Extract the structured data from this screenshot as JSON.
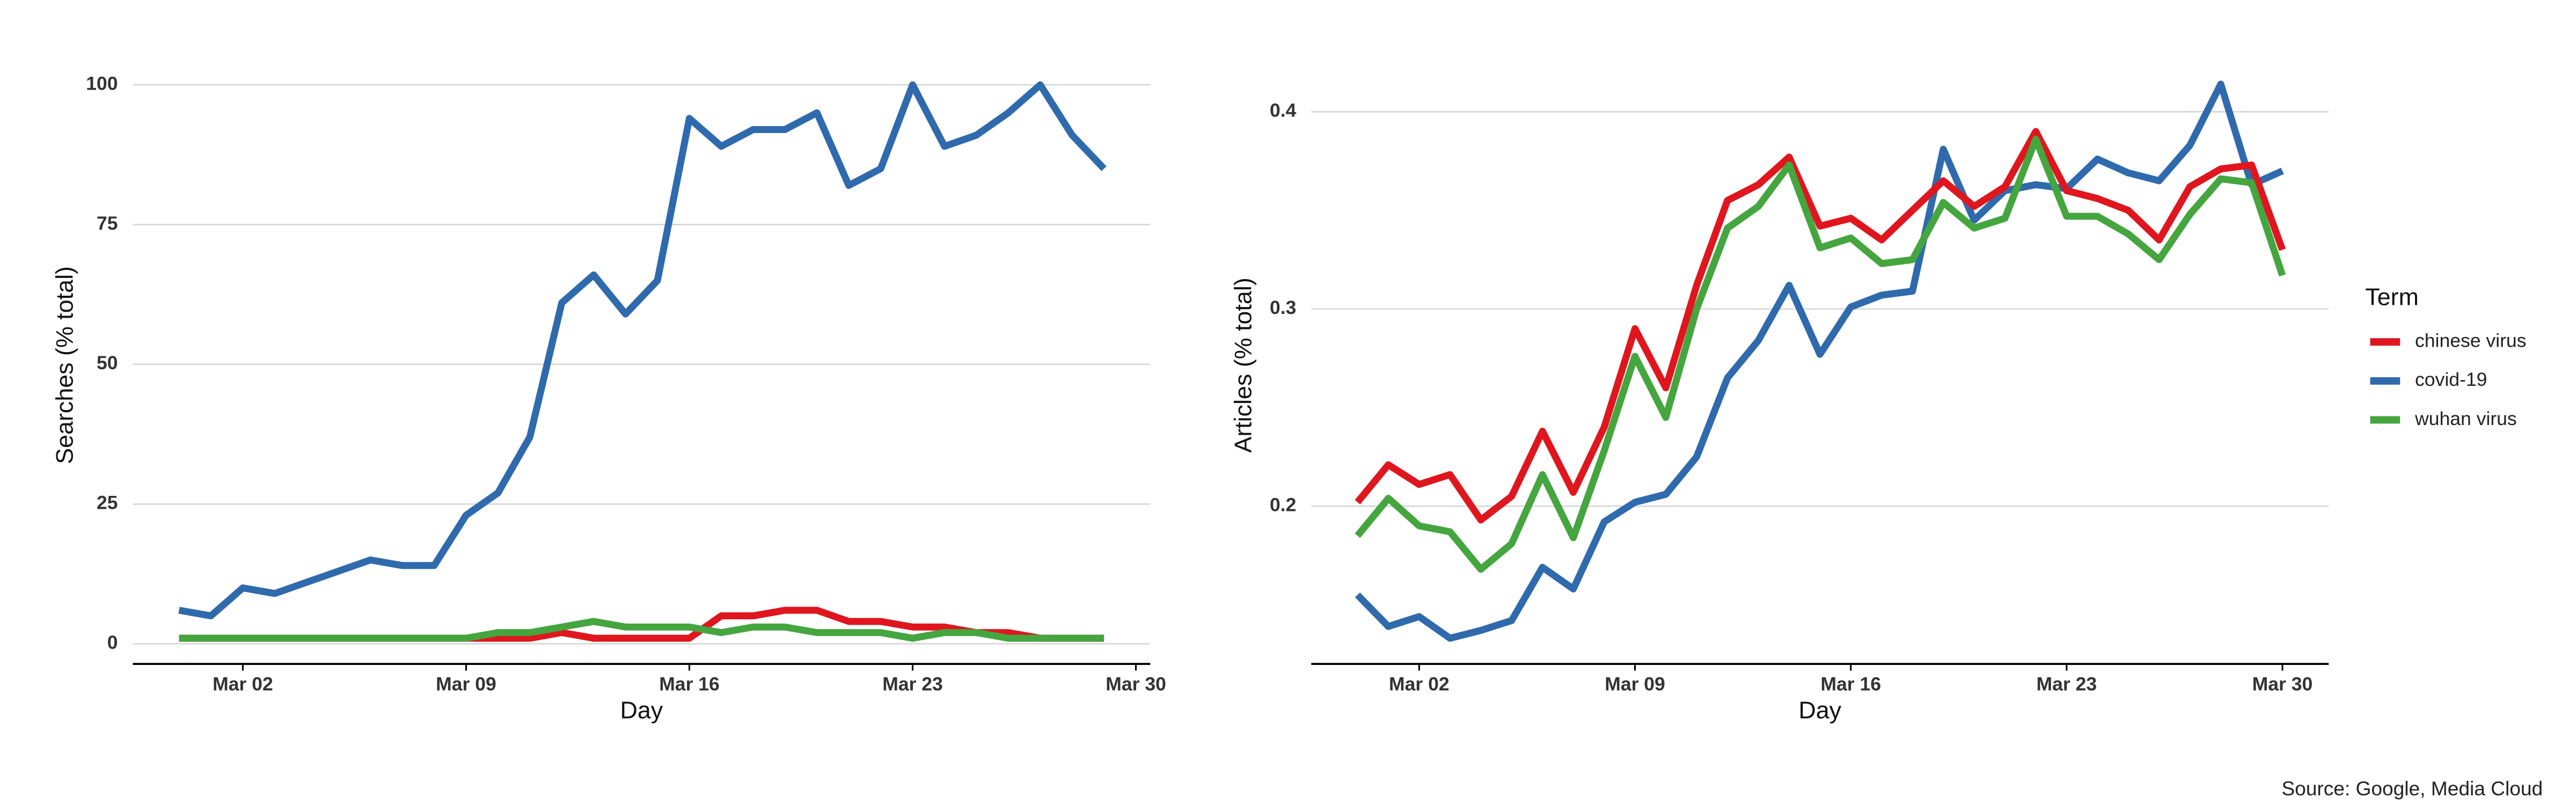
{
  "chart_data": [
    {
      "type": "line",
      "xlabel": "Day",
      "ylabel": "Searches (% total)",
      "x": [
        "Feb 29",
        "Mar 01",
        "Mar 02",
        "Mar 03",
        "Mar 04",
        "Mar 05",
        "Mar 06",
        "Mar 07",
        "Mar 08",
        "Mar 09",
        "Mar 10",
        "Mar 11",
        "Mar 12",
        "Mar 13",
        "Mar 14",
        "Mar 15",
        "Mar 16",
        "Mar 17",
        "Mar 18",
        "Mar 19",
        "Mar 20",
        "Mar 21",
        "Mar 22",
        "Mar 23",
        "Mar 24",
        "Mar 25",
        "Mar 26",
        "Mar 27",
        "Mar 28",
        "Mar 29"
      ],
      "xticks": [
        "Mar 02",
        "Mar 09",
        "Mar 16",
        "Mar 23",
        "Mar 30"
      ],
      "ylim": [
        -3.6,
        103.3
      ],
      "yticks": [
        0,
        25,
        50,
        75,
        100
      ],
      "grid": true,
      "series": [
        {
          "name": "chinese virus",
          "color": "#e0161f",
          "values": [
            1,
            1,
            1,
            1,
            1,
            1,
            1,
            1,
            1,
            1,
            1,
            1,
            2,
            1,
            1,
            1,
            1,
            5,
            5,
            6,
            6,
            4,
            4,
            3,
            3,
            2,
            2,
            1,
            1,
            1
          ]
        },
        {
          "name": "covid-19",
          "color": "#2f6aad",
          "values": [
            6,
            5,
            10,
            9,
            11,
            13,
            15,
            14,
            14,
            23,
            27,
            37,
            61,
            66,
            59,
            65,
            94,
            89,
            92,
            92,
            95,
            82,
            85,
            100,
            89,
            91,
            95,
            100,
            91,
            85
          ]
        },
        {
          "name": "wuhan virus",
          "color": "#45a53f",
          "values": [
            1,
            1,
            1,
            1,
            1,
            1,
            1,
            1,
            1,
            1,
            2,
            2,
            3,
            4,
            3,
            3,
            3,
            2,
            3,
            3,
            2,
            2,
            2,
            1,
            2,
            2,
            1,
            1,
            1,
            1
          ]
        }
      ]
    },
    {
      "type": "line",
      "xlabel": "Day",
      "ylabel": "Articles (% total)",
      "x": [
        "Feb 29",
        "Mar 01",
        "Mar 02",
        "Mar 03",
        "Mar 04",
        "Mar 05",
        "Mar 06",
        "Mar 07",
        "Mar 08",
        "Mar 09",
        "Mar 10",
        "Mar 11",
        "Mar 12",
        "Mar 13",
        "Mar 14",
        "Mar 15",
        "Mar 16",
        "Mar 17",
        "Mar 18",
        "Mar 19",
        "Mar 20",
        "Mar 21",
        "Mar 22",
        "Mar 23",
        "Mar 24",
        "Mar 25",
        "Mar 26",
        "Mar 27",
        "Mar 28",
        "Mar 29",
        "Mar 30"
      ],
      "xticks": [
        "Mar 02",
        "Mar 09",
        "Mar 16",
        "Mar 23",
        "Mar 30"
      ],
      "ylim": [
        0.12,
        0.423
      ],
      "yticks": [
        0.2,
        0.3,
        0.4
      ],
      "grid": true,
      "legend": "right",
      "legend_title": "Term",
      "series": [
        {
          "name": "chinese virus",
          "color": "#e0161f",
          "values": [
            0.202,
            0.221,
            0.211,
            0.216,
            0.193,
            0.205,
            0.238,
            0.207,
            0.24,
            0.29,
            0.26,
            0.312,
            0.355,
            0.363,
            0.377,
            0.342,
            0.346,
            0.335,
            0.35,
            0.365,
            0.352,
            0.362,
            0.39,
            0.36,
            0.356,
            0.35,
            0.335,
            0.362,
            0.371,
            0.373,
            0.33
          ]
        },
        {
          "name": "covid-19",
          "color": "#2f6aad",
          "values": [
            0.155,
            0.139,
            0.144,
            0.133,
            0.137,
            0.142,
            0.169,
            0.158,
            0.192,
            0.202,
            0.206,
            0.225,
            0.265,
            0.284,
            0.312,
            0.277,
            0.301,
            0.307,
            0.309,
            0.381,
            0.345,
            0.36,
            0.363,
            0.361,
            0.376,
            0.369,
            0.365,
            0.383,
            0.414,
            0.363,
            0.37
          ]
        },
        {
          "name": "wuhan virus",
          "color": "#45a53f",
          "values": [
            0.185,
            0.204,
            0.19,
            0.187,
            0.168,
            0.181,
            0.216,
            0.184,
            0.228,
            0.276,
            0.245,
            0.3,
            0.341,
            0.352,
            0.373,
            0.331,
            0.336,
            0.323,
            0.325,
            0.354,
            0.341,
            0.346,
            0.386,
            0.347,
            0.347,
            0.338,
            0.325,
            0.348,
            0.366,
            0.364,
            0.317
          ]
        }
      ]
    }
  ],
  "source": "Source: Google, Media Cloud"
}
